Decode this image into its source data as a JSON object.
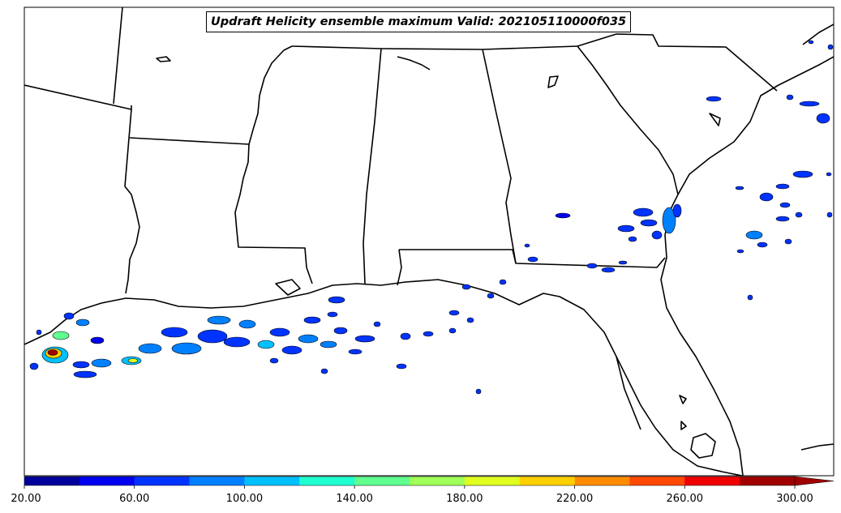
{
  "title": "Updraft Helicity ensemble maximum Valid: 202105110000f035",
  "colorbar": {
    "ticks": [
      "20.00",
      "60.00",
      "100.00",
      "140.00",
      "180.00",
      "220.00",
      "260.00",
      "300.00"
    ],
    "colors": [
      "#00009a",
      "#0000ee",
      "#0033ff",
      "#0080ff",
      "#00c0ff",
      "#20ffd0",
      "#60ff90",
      "#a0ff58",
      "#e0ff20",
      "#ffd000",
      "#ff8c00",
      "#ff4800",
      "#ee0000",
      "#a00000"
    ],
    "extend": "max"
  }
}
